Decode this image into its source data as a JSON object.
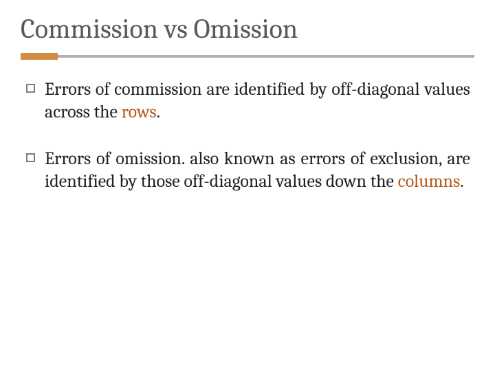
{
  "title": "Commission vs Omission",
  "accent_color": "#d38d42",
  "bar_color": "#b0b0b0",
  "title_color": "#595959",
  "body_color": "#222222",
  "highlight_color": "#b55a1a",
  "title_fontsize": 40,
  "body_fontsize": 26,
  "bullets": [
    {
      "pre": "Errors of commission are identified by off-diagonal values across the ",
      "hl": "rows",
      "post": "."
    },
    {
      "pre": "Errors of omission. also known as errors of exclusion, are identified by those off-diagonal values down the ",
      "hl": "columns",
      "post": "."
    }
  ]
}
